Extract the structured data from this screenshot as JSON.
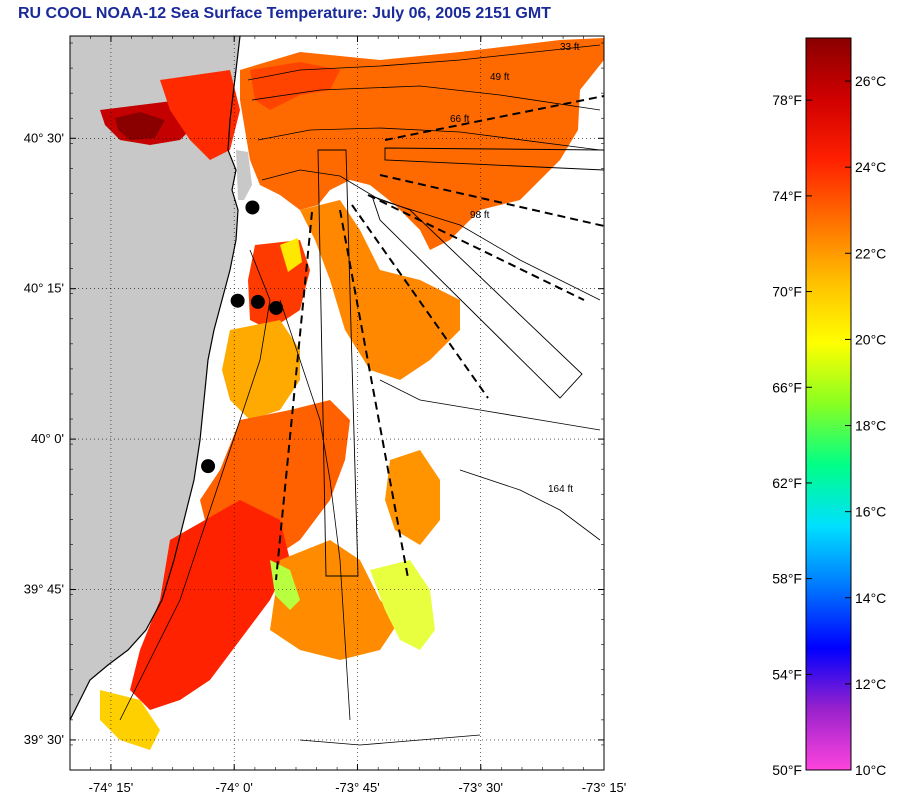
{
  "title": "RU COOL  NOAA-12  Sea Surface Temperature:  July 06, 2005 2151 GMT",
  "map": {
    "lon_range": [
      -74.333,
      -73.25
    ],
    "lat_range": [
      39.45,
      40.67
    ],
    "lat_ticks": [
      {
        "value": 40.5,
        "label": "40° 30'"
      },
      {
        "value": 40.25,
        "label": "40° 15'"
      },
      {
        "value": 40.0,
        "label": "40° 0'"
      },
      {
        "value": 39.75,
        "label": "39° 45'"
      },
      {
        "value": 39.5,
        "label": "39° 30'"
      }
    ],
    "lon_ticks": [
      {
        "value": -74.25,
        "label": "-74° 15'"
      },
      {
        "value": -74.0,
        "label": "-74° 0'"
      },
      {
        "value": -73.75,
        "label": "-73° 45'"
      },
      {
        "value": -73.5,
        "label": "-73° 30'"
      },
      {
        "value": -73.25,
        "label": "-73° 15'"
      }
    ],
    "depth_labels": [
      "33 ft",
      "49 ft",
      "66 ft",
      "98 ft",
      "164 ft"
    ],
    "stations": [
      {
        "lon": -73.963,
        "lat": 40.385
      },
      {
        "lon": -73.993,
        "lat": 40.23
      },
      {
        "lon": -73.952,
        "lat": 40.228
      },
      {
        "lon": -73.915,
        "lat": 40.218
      },
      {
        "lon": -74.053,
        "lat": 39.955
      }
    ],
    "colors": {
      "land": "#c8c8c8",
      "coast": "#000000",
      "no_data": "#ffffff"
    }
  },
  "colorbar": {
    "fahrenheit": [
      {
        "value": 78,
        "label": "78°F"
      },
      {
        "value": 74,
        "label": "74°F"
      },
      {
        "value": 70,
        "label": "70°F"
      },
      {
        "value": 66,
        "label": "66°F"
      },
      {
        "value": 62,
        "label": "62°F"
      },
      {
        "value": 58,
        "label": "58°F"
      },
      {
        "value": 54,
        "label": "54°F"
      },
      {
        "value": 50,
        "label": "50°F"
      }
    ],
    "celsius": [
      {
        "value": 26,
        "label": "26°C"
      },
      {
        "value": 24,
        "label": "24°C"
      },
      {
        "value": 22,
        "label": "22°C"
      },
      {
        "value": 20,
        "label": "20°C"
      },
      {
        "value": 18,
        "label": "18°C"
      },
      {
        "value": 16,
        "label": "16°C"
      },
      {
        "value": 14,
        "label": "14°C"
      },
      {
        "value": 12,
        "label": "12°C"
      },
      {
        "value": 10,
        "label": "10°C"
      }
    ],
    "range_c": [
      10,
      27
    ],
    "stops": [
      "#ff44dd",
      "#9922cc",
      "#0000ff",
      "#0077ff",
      "#00e0ff",
      "#00ff88",
      "#88ff22",
      "#ffff00",
      "#ffc000",
      "#ff7000",
      "#ff2000",
      "#d00000",
      "#8a0000"
    ]
  }
}
